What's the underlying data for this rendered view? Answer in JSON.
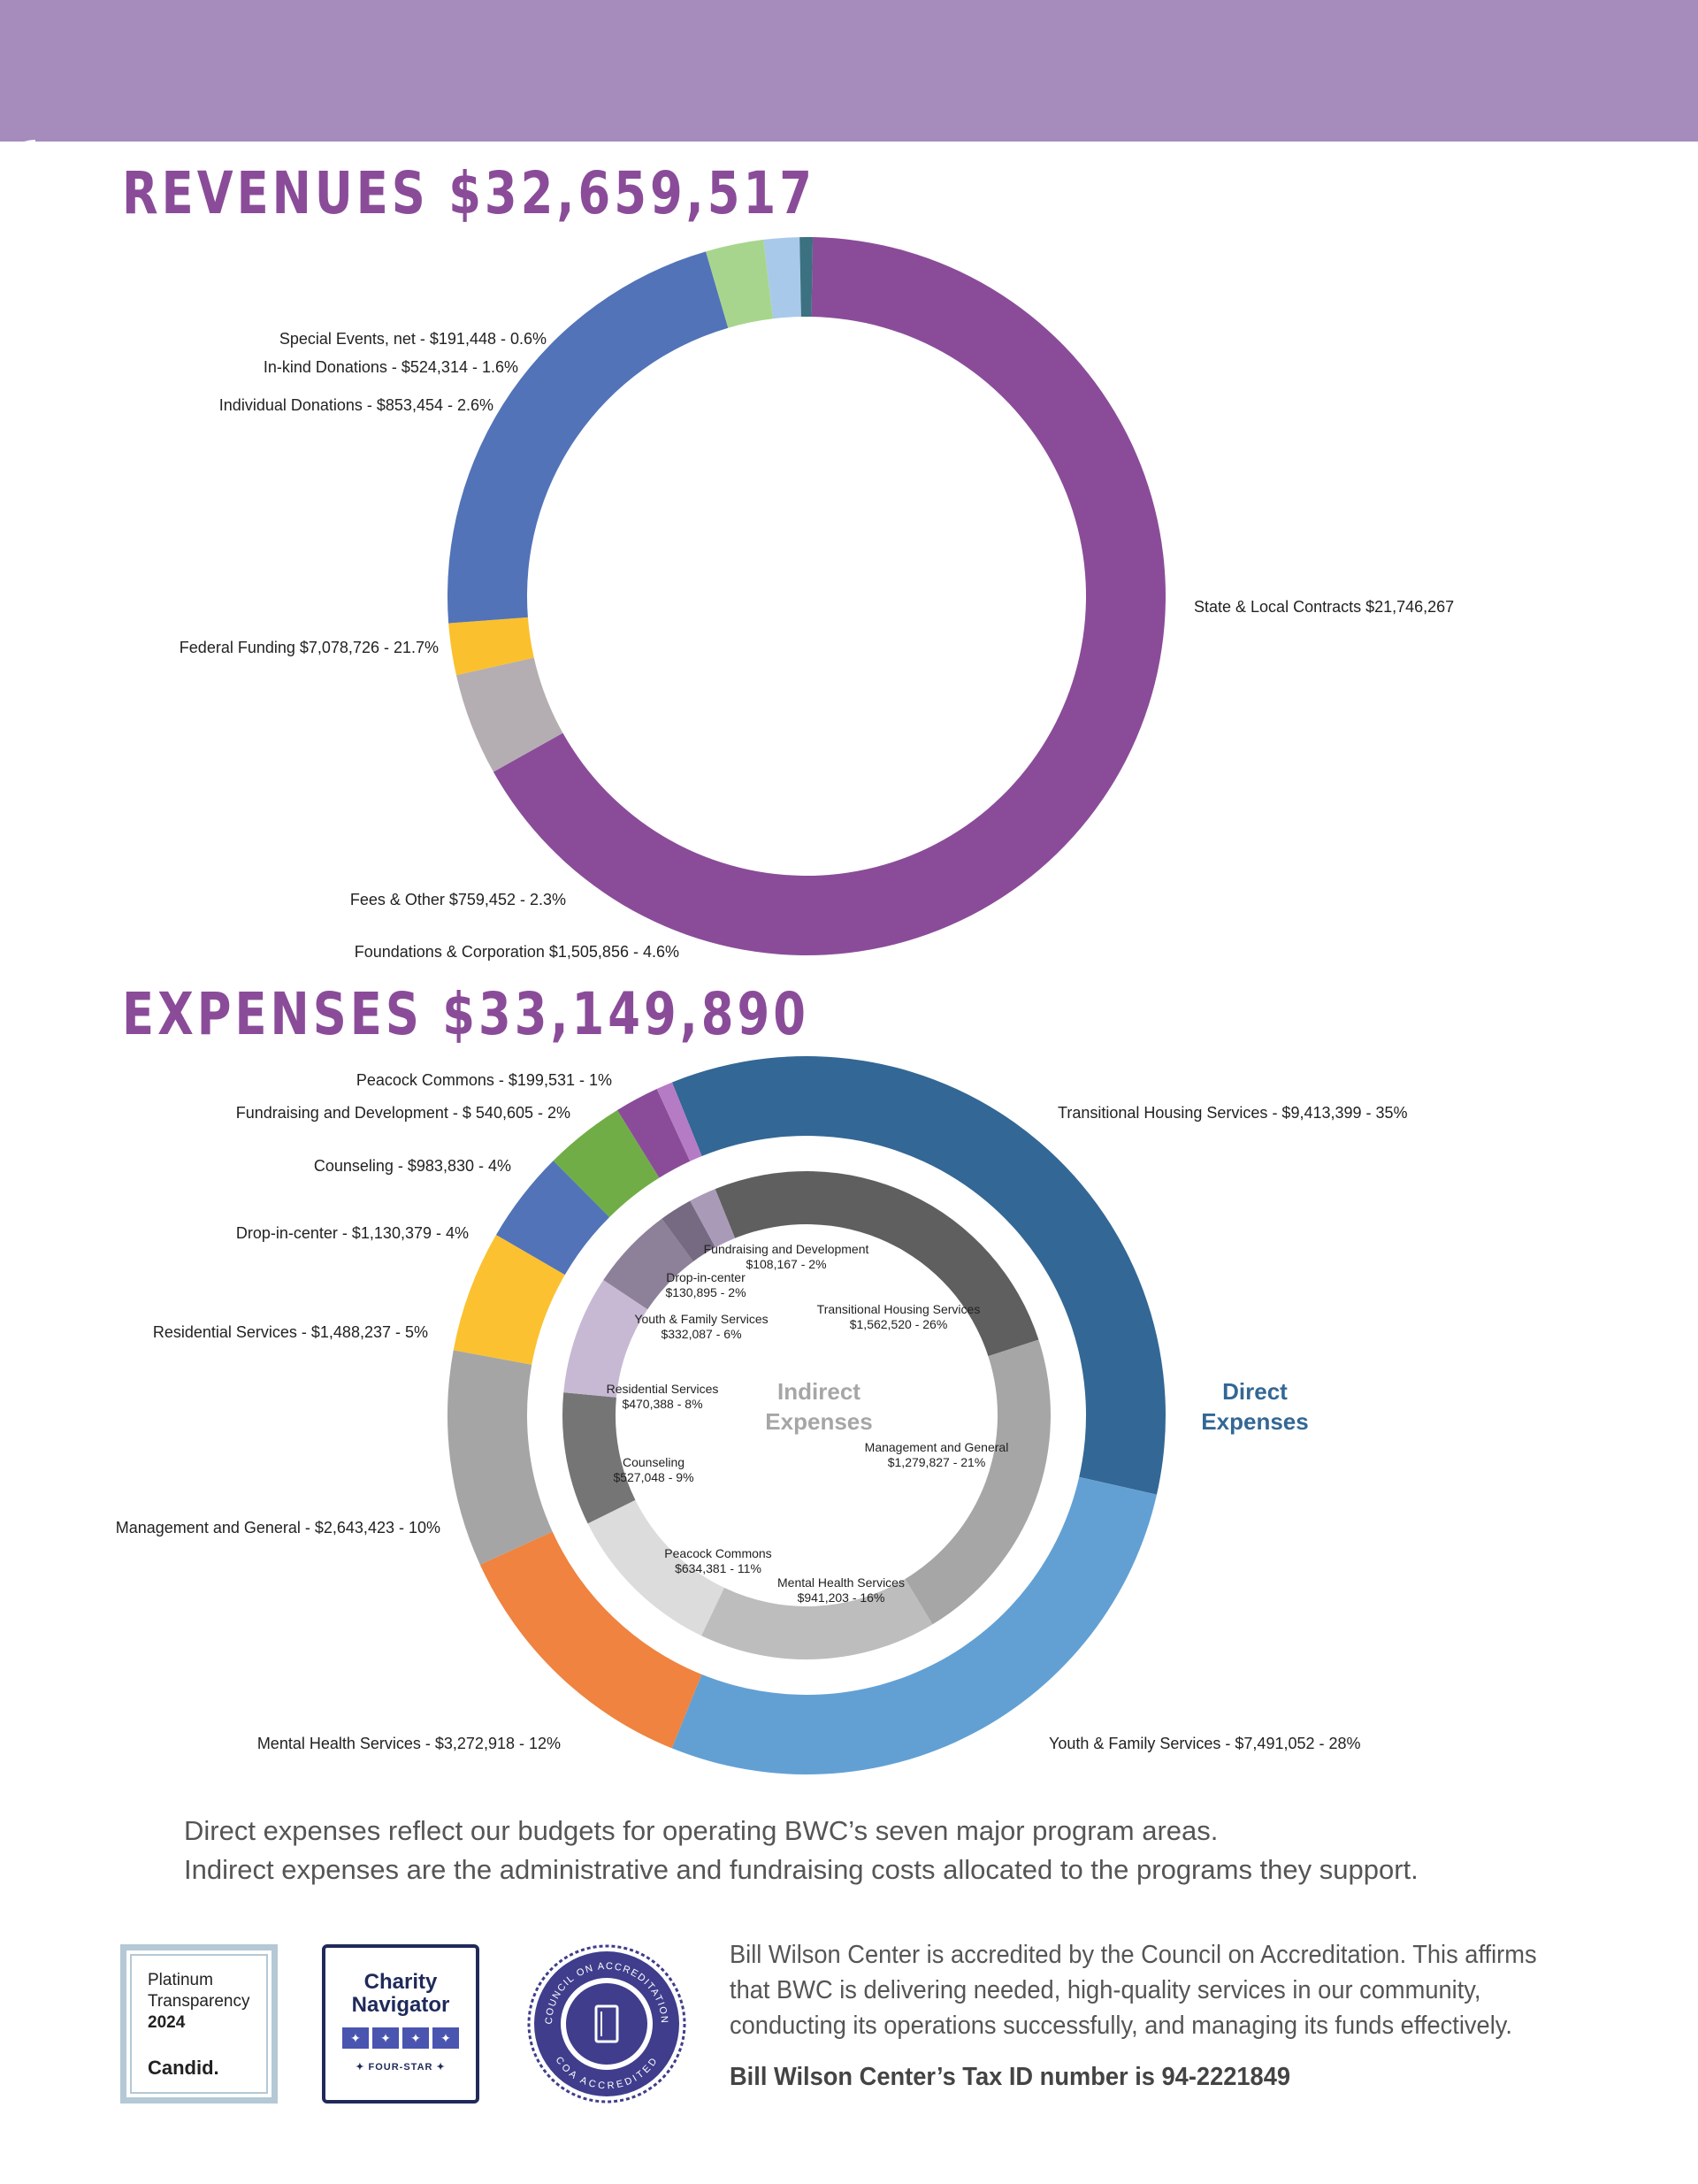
{
  "revenues": {
    "title": "REVENUES $32,659,517"
  },
  "expenses": {
    "title": "EXPENSES $33,149,890",
    "direct_label_line1": "Direct",
    "direct_label_line2": "Expenses",
    "indirect_label_line1": "Indirect",
    "indirect_label_line2": "Expenses"
  },
  "chart_data": [
    {
      "type": "pie",
      "subtype": "donut",
      "title": "REVENUES $32,659,517",
      "slices": [
        {
          "label": "State & Local Contracts",
          "value": 21746267,
          "display": "State & Local Contracts $21,746,267",
          "color": "#8a4c99"
        },
        {
          "label": "Foundations & Corporation",
          "value": 1505856,
          "percent": 4.6,
          "display": "Foundations & Corporation $1,505,856 - 4.6%",
          "color": "#b4aeb2"
        },
        {
          "label": "Fees & Other",
          "value": 759452,
          "percent": 2.3,
          "display": "Fees & Other $759,452 - 2.3%",
          "color": "#fbc02d"
        },
        {
          "label": "Federal Funding",
          "value": 7078726,
          "percent": 21.7,
          "display": "Federal Funding $7,078,726 - 21.7%",
          "color": "#5273b8"
        },
        {
          "label": "Individual Donations",
          "value": 853454,
          "percent": 2.6,
          "display": "Individual Donations - $853,454 - 2.6%",
          "color": "#a8d58e"
        },
        {
          "label": "In-kind Donations",
          "value": 524314,
          "percent": 1.6,
          "display": "In-kind Donations - $524,314 - 1.6%",
          "color": "#a9c9ea"
        },
        {
          "label": "Special Events, net",
          "value": 191448,
          "percent": 0.6,
          "display": "Special Events, net - $191,448 - 0.6%",
          "color": "#3b7180"
        }
      ]
    },
    {
      "type": "pie",
      "subtype": "donut",
      "title": "EXPENSES $33,149,890",
      "series_name": "Direct Expenses",
      "slices": [
        {
          "label": "Transitional Housing Services",
          "value": 9413399,
          "percent": 35,
          "display": "Transitional Housing Services - $9,413,399 - 35%",
          "color": "#336795"
        },
        {
          "label": "Youth & Family Services",
          "value": 7491052,
          "percent": 28,
          "display": "Youth & Family Services  - $7,491,052 - 28%",
          "color": "#62a0d4"
        },
        {
          "label": "Mental Health Services",
          "value": 3272918,
          "percent": 12,
          "display": "Mental Health Services - $3,272,918 - 12%",
          "color": "#ef833f"
        },
        {
          "label": "Management and General",
          "value": 2643423,
          "percent": 10,
          "display": "Management and General - $2,643,423 - 10%",
          "color": "#a5a5a5"
        },
        {
          "label": "Residential Services",
          "value": 1488237,
          "percent": 5,
          "display": "Residential Services - $1,488,237 - 5%",
          "color": "#fbc130"
        },
        {
          "label": "Drop-in-center",
          "value": 1130379,
          "percent": 4,
          "display": "Drop-in-center - $1,130,379 - 4%",
          "color": "#5273b8"
        },
        {
          "label": "Counseling",
          "value": 983830,
          "percent": 4,
          "display": "Counseling - $983,830 - 4%",
          "color": "#70ad47"
        },
        {
          "label": "Fundraising and Development",
          "value": 540605,
          "percent": 2,
          "display": "Fundraising and Development - $ 540,605 - 2%",
          "color": "#8a4c99"
        },
        {
          "label": "Peacock Commons",
          "value": 199531,
          "percent": 1,
          "display": "Peacock Commons - $199,531 - 1%",
          "color": "#b57bc4"
        }
      ]
    },
    {
      "type": "pie",
      "subtype": "donut",
      "title": "",
      "series_name": "Indirect Expenses",
      "slices": [
        {
          "label": "Transitional Housing Services",
          "value": 1562520,
          "percent": 26,
          "line1": "Transitional Housing Services",
          "line2": "$1,562,520 - 26%",
          "color": "#5f5f5f"
        },
        {
          "label": "Management and General",
          "value": 1279827,
          "percent": 21,
          "line1": "Management and General",
          "line2": "$1,279,827 - 21%",
          "color": "#a6a6a6"
        },
        {
          "label": "Mental Health Services",
          "value": 941203,
          "percent": 16,
          "line1": "Mental Health Services",
          "line2": "$941,203 - 16%",
          "color": "#bdbdbd"
        },
        {
          "label": "Peacock Commons",
          "value": 634381,
          "percent": 11,
          "line1": "Peacock Commons",
          "line2": "$634,381 - 11%",
          "color": "#dcdcdc"
        },
        {
          "label": "Counseling",
          "value": 527048,
          "percent": 9,
          "line1": "Counseling",
          "line2": "$527,048 - 9%",
          "color": "#757575"
        },
        {
          "label": "Residential Services",
          "value": 470388,
          "percent": 8,
          "line1": "Residential Services",
          "line2": "$470,388 - 8%",
          "color": "#c7b9d3"
        },
        {
          "label": "Youth & Family Services",
          "value": 332087,
          "percent": 6,
          "line1": "Youth & Family Services",
          "line2": "$332,087 - 6%",
          "color": "#8d8099"
        },
        {
          "label": "Drop-in-center",
          "value": 130895,
          "percent": 2,
          "line1": "Drop-in-center",
          "line2": "$130,895 - 2%",
          "color": "#766a82"
        },
        {
          "label": "Fundraising and Development",
          "value": 108167,
          "percent": 2,
          "line1": "Fundraising and Development",
          "line2": "$108,167 - 2%",
          "color": "#a99bb8"
        }
      ]
    }
  ],
  "notes": {
    "line1": "Direct expenses reflect our budgets for operating BWC’s seven major program areas.",
    "line2": "Indirect expenses are the administrative and fundraising costs allocated to the programs they support."
  },
  "badges": {
    "candid": {
      "line1": "Platinum",
      "line2": "Transparency",
      "year": "2024",
      "brand": "Candid."
    },
    "charity_navigator": {
      "line1": "Charity",
      "line2": "Navigator",
      "star_glyph": "✦",
      "level": "✦ FOUR-STAR ✦"
    },
    "coa": {
      "ring_top": "COUNCIL ON ACCREDITATION",
      "ring_bottom": "COA ACCREDITED"
    }
  },
  "accreditation": {
    "line1": "Bill Wilson Center is accredited by the Council on Accreditation. This affirms",
    "line2": "that BWC is delivering needed, high-quality services in our community,",
    "line3": "conducting its operations successfully, and managing its funds effectively.",
    "tax_id": "Bill Wilson Center’s Tax ID number is 94-2221849"
  },
  "colors": {
    "band": "#a68bbd",
    "heading": "#8a4c99",
    "direct_label": "#336795",
    "indirect_label": "#a6a6a6"
  }
}
